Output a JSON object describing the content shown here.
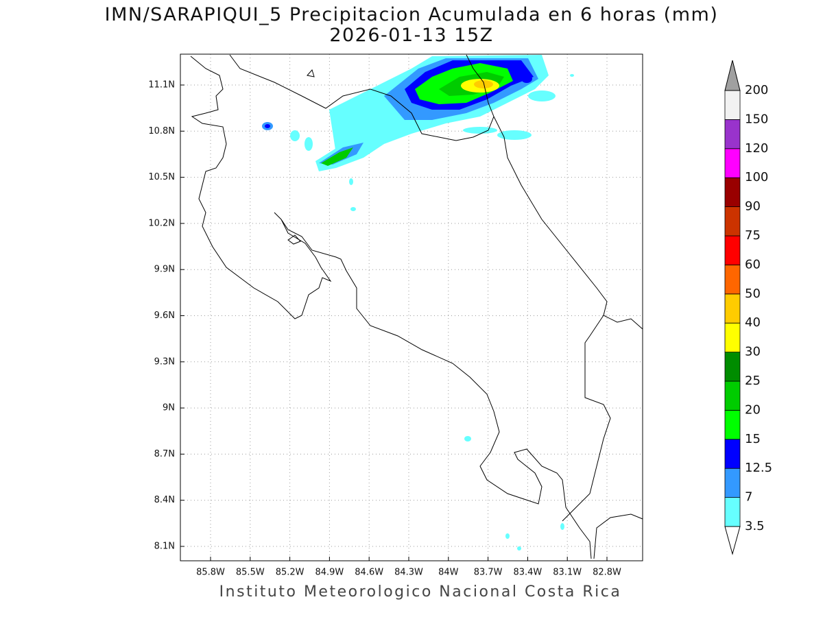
{
  "title": "IMN/SARAPIQUI_5 Precipitacion Acumulada en 6 horas (mm)",
  "subtitle": "2026-01-13 15Z",
  "footer": "Instituto Meteorologico Nacional Costa Rica",
  "map": {
    "x_labels": [
      "85.8W",
      "85.5W",
      "85.2W",
      "84.9W",
      "84.6W",
      "84.3W",
      "84W",
      "83.7W",
      "83.4W",
      "83.1W",
      "82.8W"
    ],
    "y_labels": [
      "11.1N",
      "10.8N",
      "10.5N",
      "10.2N",
      "9.9N",
      "9.6N",
      "9.3N",
      "9N",
      "8.7N",
      "8.4N",
      "8.1N"
    ]
  },
  "colorbar": {
    "labels": [
      3.5,
      7,
      12.5,
      15,
      20,
      25,
      30,
      40,
      50,
      60,
      75,
      90,
      100,
      120,
      150,
      200
    ],
    "colors": [
      "#66ffff",
      "#3399ff",
      "#0000ff",
      "#00ff00",
      "#00cc00",
      "#008c00",
      "#ffff00",
      "#ffcc00",
      "#ff6600",
      "#ff0000",
      "#cc3300",
      "#990000",
      "#ff00ff",
      "#9933cc",
      "#f2f2f2"
    ],
    "over_color": "#a0a0a0",
    "under_color": "#ffffff"
  }
}
